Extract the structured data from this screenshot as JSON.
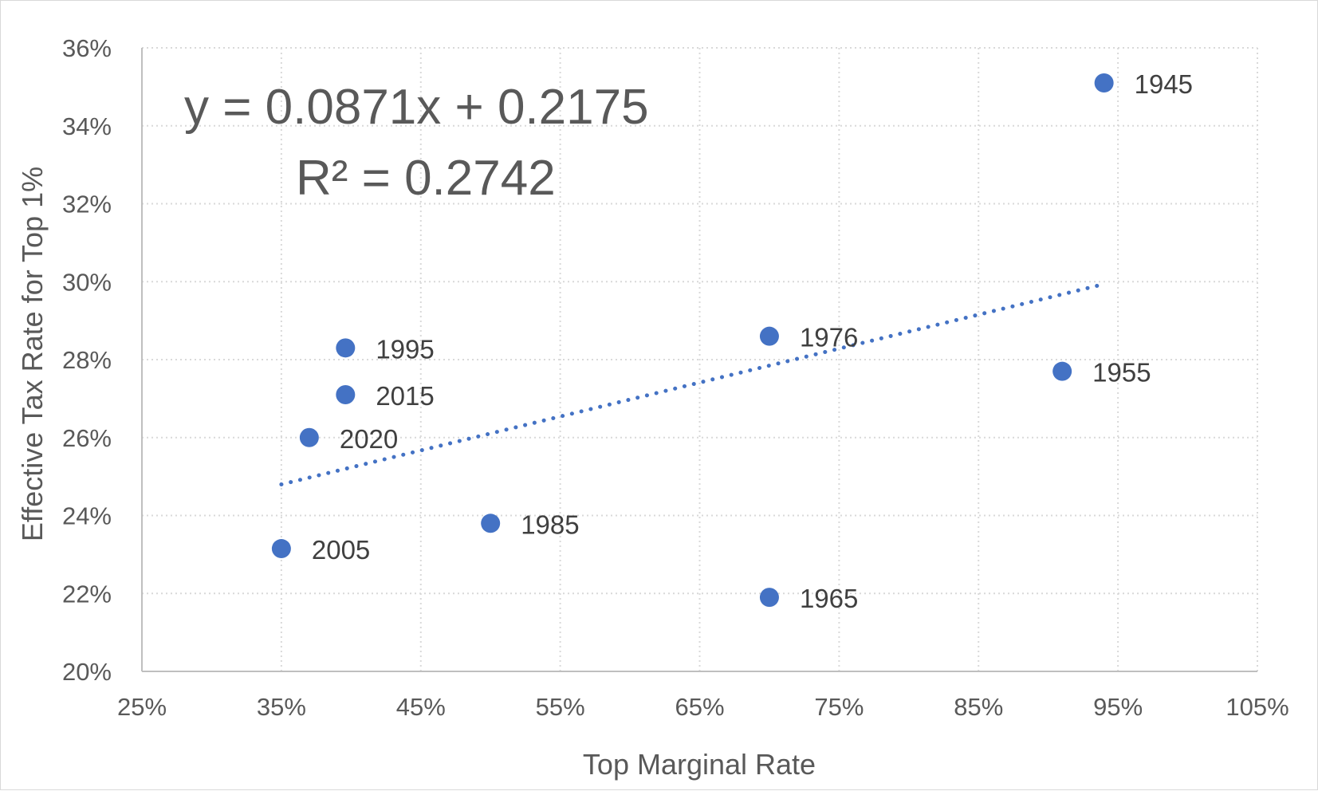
{
  "chart_data": {
    "type": "scatter",
    "title": "",
    "xlabel": "Top Marginal Rate",
    "ylabel": "Effective Tax Rate for Top 1%",
    "xlim": [
      0.25,
      1.05
    ],
    "ylim": [
      0.2,
      0.36
    ],
    "x_ticks": [
      0.25,
      0.35,
      0.45,
      0.55,
      0.65,
      0.75,
      0.85,
      0.95,
      1.05
    ],
    "x_tick_labels": [
      "25%",
      "35%",
      "45%",
      "55%",
      "65%",
      "75%",
      "85%",
      "95%",
      "105%"
    ],
    "y_ticks": [
      0.2,
      0.22,
      0.24,
      0.26,
      0.28,
      0.3,
      0.32,
      0.34,
      0.36
    ],
    "y_tick_labels": [
      "20%",
      "22%",
      "24%",
      "26%",
      "28%",
      "30%",
      "32%",
      "34%",
      "36%"
    ],
    "grid": true,
    "points": [
      {
        "label": "1945",
        "x": 0.94,
        "y": 0.351
      },
      {
        "label": "1955",
        "x": 0.91,
        "y": 0.277
      },
      {
        "label": "1965",
        "x": 0.7,
        "y": 0.219
      },
      {
        "label": "1976",
        "x": 0.7,
        "y": 0.286
      },
      {
        "label": "1985",
        "x": 0.5,
        "y": 0.238
      },
      {
        "label": "1995",
        "x": 0.396,
        "y": 0.283
      },
      {
        "label": "2005",
        "x": 0.35,
        "y": 0.2315
      },
      {
        "label": "2015",
        "x": 0.396,
        "y": 0.271
      },
      {
        "label": "2020",
        "x": 0.37,
        "y": 0.26
      }
    ],
    "trendline": {
      "type": "linear",
      "style": "dotted",
      "slope": 0.0871,
      "intercept": 0.2175,
      "x_range": [
        0.35,
        0.94
      ],
      "equation_label": "y = 0.0871x + 0.2175",
      "r2_label": "R² = 0.2742"
    },
    "colors": {
      "marker": "#4472c4",
      "trendline": "#4472c4",
      "grid": "#d9d9d9",
      "axis": "#bfbfbf",
      "text": "#595959"
    }
  }
}
